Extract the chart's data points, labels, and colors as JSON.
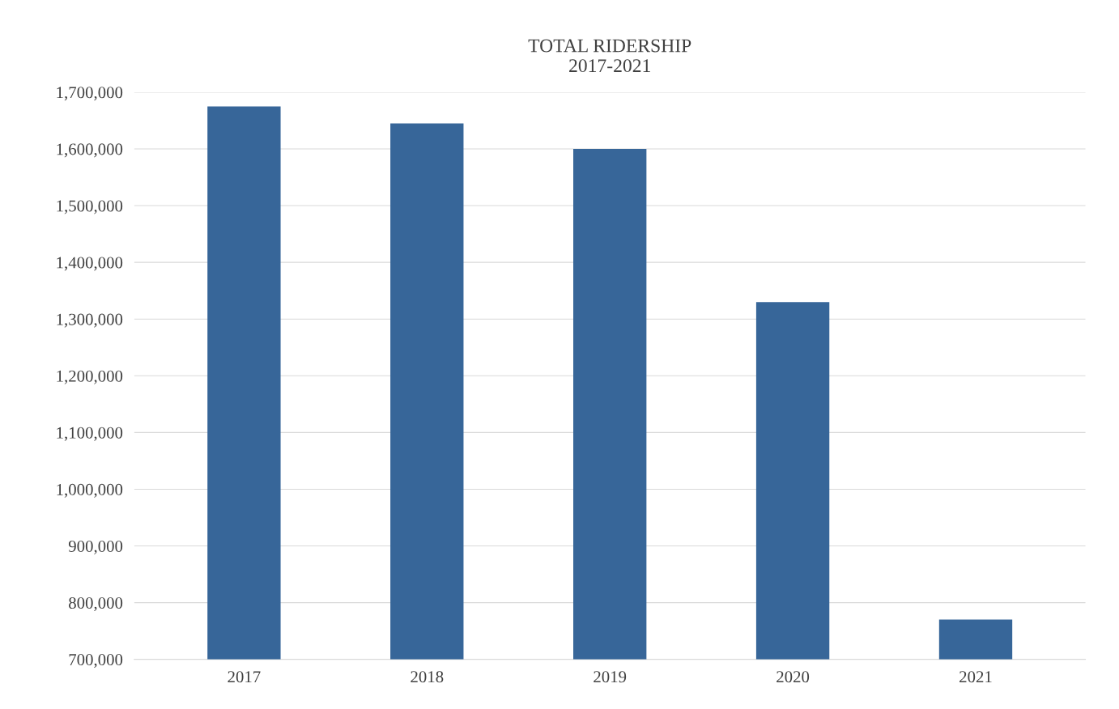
{
  "chart_data": {
    "type": "bar",
    "title": "TOTAL RIDERSHIP\n2017-2021",
    "categories": [
      "2017",
      "2018",
      "2019",
      "2020",
      "2021"
    ],
    "values": [
      1675000,
      1645000,
      1600000,
      1330000,
      770000
    ],
    "color": "#376699",
    "ylim": [
      700000,
      1700000
    ],
    "yticks": [
      {
        "value": 700000,
        "label": "700,000"
      },
      {
        "value": 800000,
        "label": "800,000"
      },
      {
        "value": 900000,
        "label": "900,000"
      },
      {
        "value": 1000000,
        "label": "1,000,000"
      },
      {
        "value": 1100000,
        "label": "1,100,000"
      },
      {
        "value": 1200000,
        "label": "1,200,000"
      },
      {
        "value": 1300000,
        "label": "1,300,000"
      },
      {
        "value": 1400000,
        "label": "1,400,000"
      },
      {
        "value": 1500000,
        "label": "1,500,000"
      },
      {
        "value": 1600000,
        "label": "1,600,000"
      },
      {
        "value": 1700000,
        "label": "1,700,000"
      }
    ],
    "grid": "y"
  }
}
